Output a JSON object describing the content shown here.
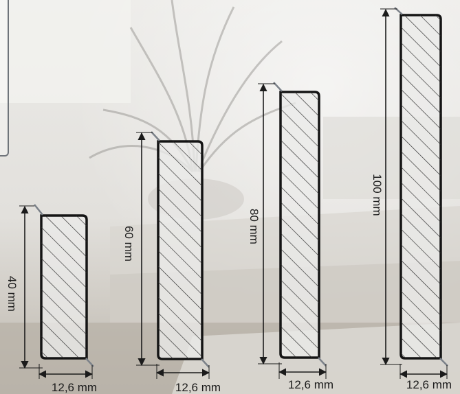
{
  "colors": {
    "outline": "#141414",
    "hatch": "#2a2a2a",
    "dimension": "#1b1b1b",
    "accent_edge": "#7b8189",
    "fill": "rgba(235,235,233,0.78)"
  },
  "profiles": [
    {
      "height_label": "40 mm",
      "width_label": "12,6 mm"
    },
    {
      "height_label": "60 mm",
      "width_label": "12,6 mm"
    },
    {
      "height_label": "80 mm",
      "width_label": "12,6 mm"
    },
    {
      "height_label": "100 mm",
      "width_label": "12,6 mm"
    }
  ]
}
